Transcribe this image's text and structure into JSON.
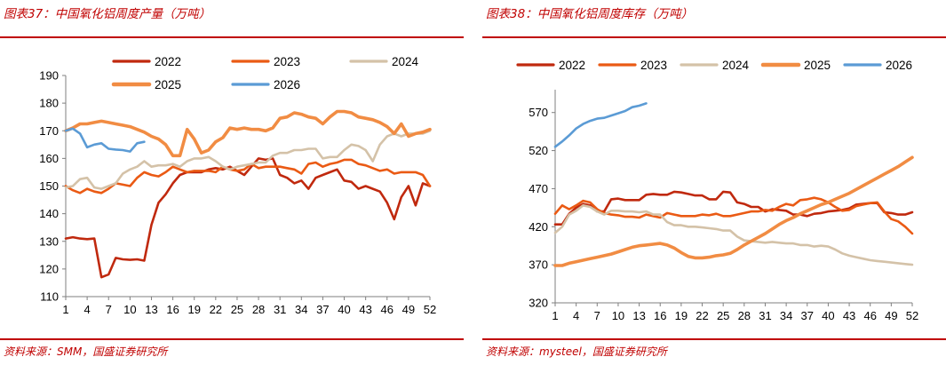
{
  "figures": [
    {
      "caption": "图表37：中国氧化铝周度产量（万吨）",
      "source": "资料来源：SMM，国盛证券研究所"
    },
    {
      "caption": "图表38：中国氧化铝周度库存（万吨）",
      "source": "资料来源：mysteel，国盛证券研究所"
    }
  ],
  "chart_data": [
    {
      "type": "line",
      "title": "",
      "xlabel": "",
      "ylabel": "",
      "x_ticks": [
        1,
        4,
        7,
        10,
        13,
        16,
        19,
        22,
        25,
        28,
        31,
        34,
        37,
        40,
        43,
        46,
        49,
        52
      ],
      "xlim": [
        1,
        52
      ],
      "ylim": [
        110,
        190
      ],
      "y_ticks": [
        110,
        120,
        130,
        140,
        150,
        160,
        170,
        180,
        190
      ],
      "grid": false,
      "legend": "top",
      "series": [
        {
          "name": "2022",
          "color": "#c0290e",
          "start": 1,
          "values": [
            131,
            131.5,
            131,
            130.8,
            131,
            117,
            118,
            124,
            123.5,
            123.3,
            123.5,
            123,
            136,
            144,
            147,
            151,
            154,
            155,
            155,
            155,
            156,
            156.5,
            156,
            157,
            155.5,
            154,
            157,
            160,
            159.5,
            160,
            154,
            153,
            151,
            152,
            149,
            153,
            154,
            155,
            156,
            152,
            151.5,
            149,
            150,
            149,
            148,
            144,
            138,
            146,
            150,
            143,
            151,
            150
          ]
        },
        {
          "name": "2023",
          "color": "#ea5a14",
          "start": 1,
          "values": [
            150,
            148.5,
            147.5,
            149,
            148,
            147.5,
            149,
            151,
            150.5,
            150,
            153,
            155,
            154,
            153.5,
            155,
            157,
            156,
            155,
            155.5,
            155.5,
            155.5,
            155,
            157,
            156,
            155.5,
            156,
            158,
            156.5,
            157,
            157,
            157,
            156.5,
            156,
            154.5,
            158,
            158.5,
            157,
            158,
            158.5,
            159.5,
            159.5,
            158,
            157.5,
            156.5,
            155.5,
            156,
            154.5,
            155,
            155,
            155,
            154,
            150
          ]
        },
        {
          "name": "2024",
          "color": "#d4c2a8",
          "start": 1,
          "values": [
            149.5,
            150,
            152.5,
            153,
            149.5,
            149,
            150,
            151,
            154.5,
            156,
            157,
            159,
            157,
            157.5,
            157.5,
            158,
            157,
            159,
            160,
            160,
            160.5,
            159,
            157,
            156,
            157,
            157.5,
            158,
            158.5,
            158.5,
            161,
            162,
            162,
            163,
            163,
            163.5,
            163.5,
            160,
            160.5,
            160.5,
            163,
            165,
            164.5,
            163,
            159,
            165,
            168,
            169,
            168,
            169,
            169,
            169,
            170
          ]
        },
        {
          "name": "2025",
          "color": "#f18c43",
          "start": 1,
          "values": [
            170,
            171,
            172.5,
            172.5,
            173,
            173.5,
            173,
            172.5,
            172,
            171.5,
            170.5,
            169.5,
            168,
            167,
            165,
            161,
            161,
            170.5,
            167,
            162,
            163,
            166,
            167.5,
            171,
            170.5,
            171,
            170.5,
            170.5,
            170,
            171,
            174.5,
            175,
            176.5,
            176,
            175,
            174.5,
            172.5,
            175,
            177,
            177,
            176.5,
            175,
            174.5,
            174,
            173,
            171.5,
            169,
            172.5,
            168,
            169,
            169.5,
            170.5
          ]
        },
        {
          "name": "2026",
          "color": "#5b9bd5",
          "start": 1,
          "values": [
            170,
            170.8,
            169,
            164,
            165,
            165.5,
            163.5,
            163.2,
            163,
            162.5,
            165.5,
            166
          ]
        }
      ]
    },
    {
      "type": "line",
      "title": "",
      "xlabel": "",
      "ylabel": "",
      "x_ticks": [
        1,
        4,
        7,
        10,
        13,
        16,
        19,
        22,
        25,
        28,
        31,
        34,
        37,
        40,
        43,
        46,
        49,
        52
      ],
      "xlim": [
        1,
        52
      ],
      "ylim": [
        320,
        600
      ],
      "y_ticks": [
        320,
        370,
        420,
        470,
        520,
        570
      ],
      "grid": false,
      "legend": "top",
      "series": [
        {
          "name": "2022",
          "color": "#c0290e",
          "start": 1,
          "values": [
            423,
            423,
            437,
            445,
            450,
            448,
            440,
            440,
            456,
            457,
            455,
            455,
            455,
            462,
            463,
            462,
            462,
            466,
            465,
            463,
            461,
            461,
            456,
            456,
            466,
            465,
            452,
            450,
            446,
            446,
            440,
            443,
            442,
            441,
            436,
            436,
            434,
            437,
            438,
            440,
            441,
            442,
            444,
            449,
            450,
            451,
            451,
            439,
            438,
            436,
            436,
            439
          ]
        },
        {
          "name": "2023",
          "color": "#ea5a14",
          "start": 1,
          "values": [
            437,
            448,
            443,
            448,
            454,
            452,
            443,
            438,
            436,
            435,
            433,
            433,
            432,
            436,
            434,
            432,
            438,
            436,
            434,
            434,
            434,
            436,
            435,
            437,
            434,
            434,
            436,
            438,
            440,
            440,
            442,
            441,
            446,
            450,
            448,
            455,
            456,
            458,
            456,
            452,
            446,
            441,
            442,
            447,
            449,
            451,
            452,
            440,
            430,
            427,
            420,
            411
          ]
        },
        {
          "name": "2024",
          "color": "#d4c2a8",
          "start": 1,
          "values": [
            412,
            420,
            436,
            441,
            448,
            446,
            440,
            436,
            441,
            441,
            440,
            440,
            439,
            440,
            436,
            436,
            426,
            422,
            422,
            420,
            420,
            419,
            418,
            417,
            415,
            415,
            407,
            402,
            401,
            400,
            399,
            400,
            399,
            398,
            398,
            396,
            396,
            394,
            395,
            394,
            390,
            385,
            382,
            380,
            378,
            376,
            375,
            374,
            373,
            372,
            371,
            370
          ]
        },
        {
          "name": "2025",
          "color": "#f18c43",
          "start": 1,
          "values": [
            369,
            369,
            372,
            374,
            376,
            378,
            380,
            382,
            384,
            387,
            390,
            393,
            395,
            396,
            397,
            398,
            396,
            392,
            386,
            381,
            379,
            379,
            380,
            382,
            383,
            385,
            390,
            396,
            401,
            406,
            411,
            417,
            423,
            428,
            432,
            437,
            441,
            445,
            449,
            452,
            456,
            460,
            464,
            469,
            474,
            479,
            484,
            489,
            494,
            499,
            505,
            511
          ]
        },
        {
          "name": "2026",
          "color": "#5b9bd5",
          "start": 1,
          "values": [
            525,
            532,
            540,
            549,
            555,
            559,
            562,
            563,
            566,
            569,
            572,
            577,
            579,
            582
          ]
        }
      ]
    }
  ]
}
